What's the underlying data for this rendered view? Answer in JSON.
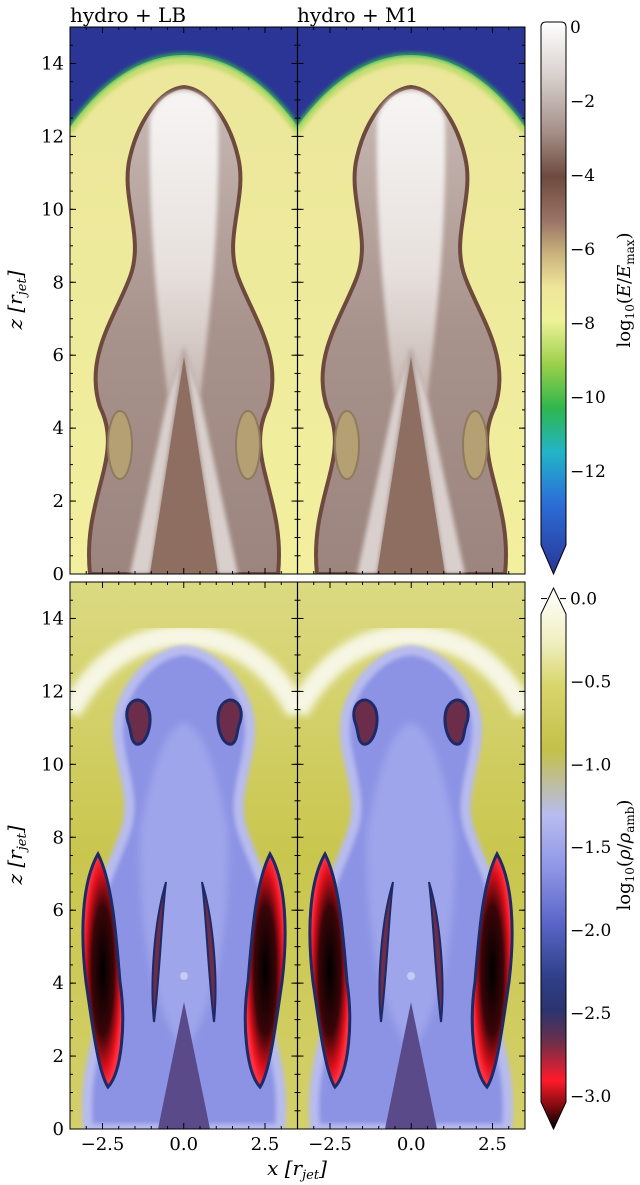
{
  "chart_data": [
    {
      "type": "heatmap",
      "panel_titles": [
        "hydro + LB",
        "hydro + M1"
      ],
      "ylabel": "z [r_jet]",
      "yticks": [
        "0",
        "2",
        "4",
        "6",
        "8",
        "10",
        "12",
        "14"
      ],
      "ylim": [
        0,
        15
      ],
      "colorbar": {
        "label": "log10(E/E_max)",
        "ticks": [
          "0",
          "−2",
          "−4",
          "−6",
          "−8",
          "−10",
          "−12"
        ],
        "range": [
          -14,
          0
        ],
        "extend": "min",
        "colors": [
          "#2a3598",
          "#2b6fd8",
          "#22b4c8",
          "#2fb64e",
          "#9bd04a",
          "#eef29a",
          "#efe59a",
          "#c9b27c",
          "#9a7466",
          "#6e4a3e",
          "#a58f88",
          "#d7cfcc",
          "#ffffff"
        ]
      }
    },
    {
      "type": "heatmap",
      "xlabel": "x [r_jet]",
      "xticks": [
        "−2.5",
        "0.0",
        "2.5"
      ],
      "xlim": [
        -3.5,
        3.5
      ],
      "ylabel": "z [r_jet]",
      "yticks": [
        "0",
        "2",
        "4",
        "6",
        "8",
        "10",
        "12",
        "14"
      ],
      "ylim": [
        0,
        15
      ],
      "colorbar": {
        "label": "log10(ρ/ρ_amb)",
        "ticks": [
          "0.0",
          "−0.5",
          "−1.0",
          "−1.5",
          "−2.0",
          "−2.5",
          "−3.0"
        ],
        "range": [
          -3.2,
          0.1
        ],
        "extend": "both",
        "colors": [
          "#000000",
          "#7a0a10",
          "#ff1a2a",
          "#6e2f4a",
          "#2a3470",
          "#2f3f88",
          "#5966c8",
          "#8e95e6",
          "#b8bcf0",
          "#c4c04a",
          "#d8d66c",
          "#f0efc0",
          "#ffffff"
        ]
      }
    }
  ]
}
